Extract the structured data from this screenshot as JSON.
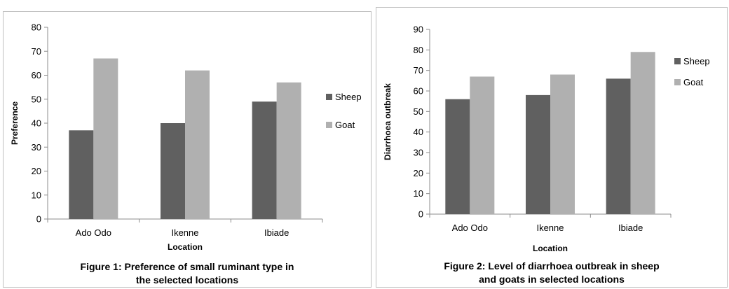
{
  "chart_data": [
    {
      "type": "bar",
      "categories": [
        "Ado Odo",
        "Ikenne",
        "Ibiade"
      ],
      "series": [
        {
          "name": "Sheep",
          "values": [
            37,
            40,
            49
          ]
        },
        {
          "name": "Goat",
          "values": [
            67,
            62,
            57
          ]
        }
      ],
      "xlabel": "Location",
      "ylabel": "Preference",
      "ylim": [
        0,
        80
      ],
      "yticks": [
        0,
        10,
        20,
        30,
        40,
        50,
        60,
        70,
        80
      ],
      "grid": false,
      "legend": "right",
      "caption_lines": [
        "Figure 1: Preference of small ruminant type in",
        "the selected locations"
      ]
    },
    {
      "type": "bar",
      "categories": [
        "Ado Odo",
        "Ikenne",
        "Ibiade"
      ],
      "series": [
        {
          "name": "Sheep",
          "values": [
            56,
            58,
            66
          ]
        },
        {
          "name": "Goat",
          "values": [
            67,
            68,
            79
          ]
        }
      ],
      "xlabel": "Location",
      "ylabel": "Diarrhoea outbreak",
      "ylim": [
        0,
        90
      ],
      "yticks": [
        0,
        10,
        20,
        30,
        40,
        50,
        60,
        70,
        80,
        90
      ],
      "grid": false,
      "legend": "right",
      "caption_lines": [
        "Figure 2: Level of diarrhoea outbreak in sheep",
        "and goats in selected locations"
      ]
    }
  ],
  "colors": {
    "sheep": "#606060",
    "goat": "#b0b0b0",
    "axis": "#8c8c8c"
  }
}
